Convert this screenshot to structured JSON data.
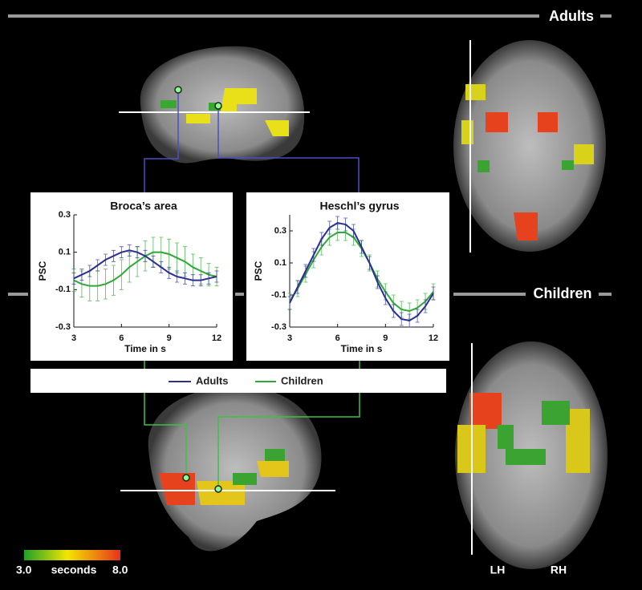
{
  "chart_data": [
    {
      "type": "line",
      "title": "Broca’s area",
      "xlabel": "Time in s",
      "ylabel": "PSC",
      "x": [
        3,
        3.5,
        4,
        4.5,
        5,
        5.5,
        6,
        6.5,
        7,
        7.5,
        8,
        8.5,
        9,
        9.5,
        10,
        10.5,
        11,
        11.5,
        12
      ],
      "xlim": [
        3,
        12
      ],
      "xticks": [
        3,
        6,
        9,
        12
      ],
      "ylim": [
        -0.3,
        0.3
      ],
      "yticks": [
        -0.3,
        -0.1,
        0.1,
        0.3
      ],
      "series": [
        {
          "name": "Adults",
          "color": "#2b2f8f",
          "values": [
            -0.04,
            -0.02,
            0.0,
            0.03,
            0.06,
            0.08,
            0.1,
            0.11,
            0.1,
            0.08,
            0.05,
            0.02,
            -0.01,
            -0.03,
            -0.04,
            -0.05,
            -0.05,
            -0.04,
            -0.03
          ],
          "errors": [
            0.03,
            0.03,
            0.03,
            0.03,
            0.03,
            0.03,
            0.03,
            0.03,
            0.03,
            0.03,
            0.03,
            0.03,
            0.03,
            0.03,
            0.03,
            0.03,
            0.03,
            0.03,
            0.03
          ]
        },
        {
          "name": "Children",
          "color": "#2ea836",
          "values": [
            -0.05,
            -0.07,
            -0.08,
            -0.08,
            -0.07,
            -0.05,
            -0.02,
            0.02,
            0.05,
            0.08,
            0.1,
            0.1,
            0.09,
            0.07,
            0.05,
            0.02,
            0.0,
            -0.02,
            -0.03
          ],
          "errors": [
            0.06,
            0.07,
            0.08,
            0.08,
            0.08,
            0.08,
            0.08,
            0.08,
            0.08,
            0.08,
            0.08,
            0.08,
            0.08,
            0.08,
            0.08,
            0.07,
            0.07,
            0.06,
            0.05
          ]
        }
      ]
    },
    {
      "type": "line",
      "title": "Heschl’s gyrus",
      "xlabel": "Time in s",
      "ylabel": "PSC",
      "x": [
        3,
        3.5,
        4,
        4.5,
        5,
        5.5,
        6,
        6.5,
        7,
        7.5,
        8,
        8.5,
        9,
        9.5,
        10,
        10.5,
        11,
        11.5,
        12
      ],
      "xlim": [
        3,
        12
      ],
      "xticks": [
        3,
        6,
        9,
        12
      ],
      "ylim": [
        -0.3,
        0.4
      ],
      "yticks": [
        -0.3,
        -0.1,
        0.1,
        0.3
      ],
      "series": [
        {
          "name": "Adults",
          "color": "#2b2f8f",
          "values": [
            -0.15,
            -0.05,
            0.05,
            0.15,
            0.25,
            0.32,
            0.35,
            0.34,
            0.3,
            0.2,
            0.1,
            -0.02,
            -0.12,
            -0.2,
            -0.25,
            -0.26,
            -0.23,
            -0.17,
            -0.09
          ],
          "errors": [
            0.04,
            0.04,
            0.04,
            0.04,
            0.04,
            0.04,
            0.04,
            0.04,
            0.04,
            0.04,
            0.04,
            0.04,
            0.04,
            0.04,
            0.04,
            0.04,
            0.04,
            0.04,
            0.04
          ]
        },
        {
          "name": "Children",
          "color": "#2ea836",
          "values": [
            -0.14,
            -0.06,
            0.03,
            0.12,
            0.2,
            0.26,
            0.29,
            0.29,
            0.26,
            0.19,
            0.1,
            0.0,
            -0.08,
            -0.15,
            -0.19,
            -0.2,
            -0.18,
            -0.14,
            -0.08
          ],
          "errors": [
            0.05,
            0.05,
            0.05,
            0.05,
            0.05,
            0.05,
            0.05,
            0.05,
            0.05,
            0.05,
            0.05,
            0.05,
            0.05,
            0.05,
            0.05,
            0.05,
            0.05,
            0.05,
            0.05
          ]
        }
      ]
    }
  ],
  "labels": {
    "adults": "Adults",
    "children": "Children",
    "lh": "LH",
    "rh": "RH"
  },
  "colorbar": {
    "min": "3.0",
    "unit": "seconds",
    "max": "8.0"
  }
}
